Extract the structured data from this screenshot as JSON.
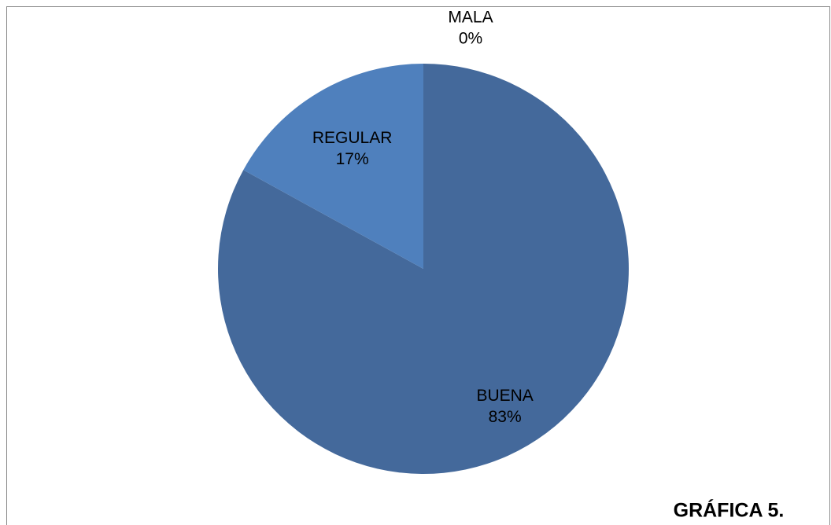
{
  "chart_data": {
    "type": "pie",
    "title": "GRÁFICA 5.",
    "categories": [
      "BUENA",
      "REGULAR",
      "MALA"
    ],
    "values": [
      83,
      17,
      0
    ],
    "value_labels": [
      "83%",
      "17%",
      "0%"
    ],
    "colors": [
      "#44699b",
      "#4f80bd",
      "#9bbb59"
    ]
  }
}
